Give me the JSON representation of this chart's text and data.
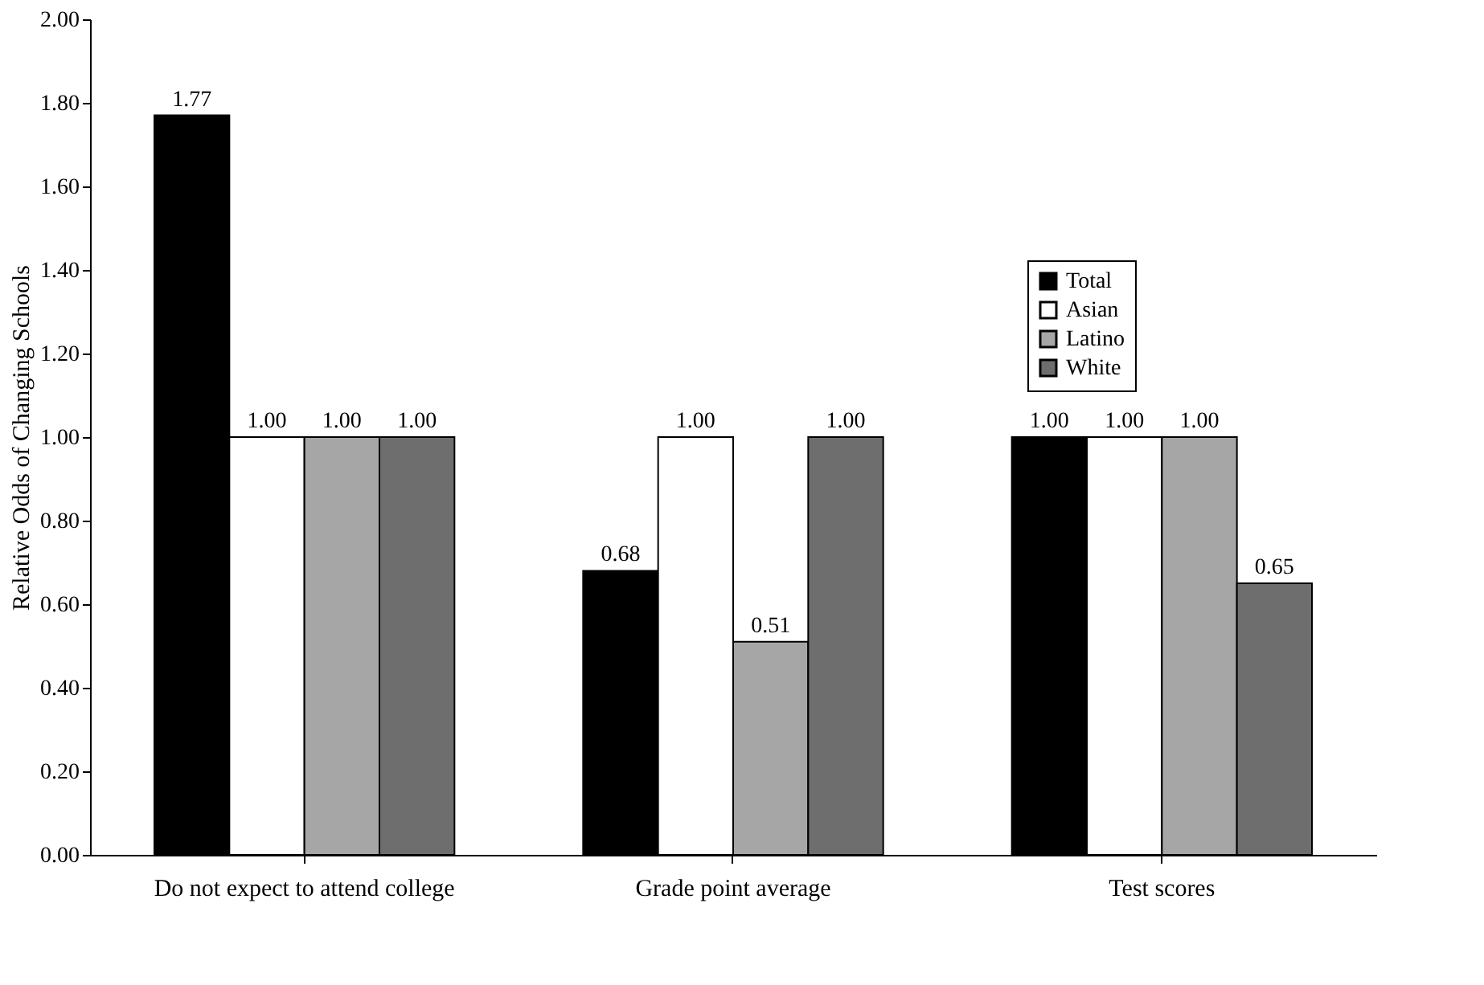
{
  "chart_data": {
    "type": "bar",
    "ylabel": "Relative Odds of Changing Schools",
    "categories": [
      "Do not expect to attend college",
      "Grade point average",
      "Test scores"
    ],
    "series": [
      {
        "name": "Total",
        "color": "#000000",
        "values": [
          1.77,
          0.68,
          1.0
        ],
        "value_labels": [
          "1.77",
          "0.68",
          "1.00"
        ]
      },
      {
        "name": "Asian",
        "color": "#ffffff",
        "values": [
          1.0,
          1.0,
          1.0
        ],
        "value_labels": [
          "1.00",
          "1.00",
          "1.00"
        ]
      },
      {
        "name": "Latino",
        "color": "#a6a6a6",
        "values": [
          1.0,
          0.51,
          1.0
        ],
        "value_labels": [
          "1.00",
          "0.51",
          "1.00"
        ]
      },
      {
        "name": "White",
        "color": "#6e6e6e",
        "values": [
          1.0,
          1.0,
          0.65
        ],
        "value_labels": [
          "1.00",
          "1.00",
          "0.65"
        ]
      }
    ],
    "ylim": [
      0,
      2
    ],
    "yticks": [
      {
        "value": 0,
        "label": "0.00"
      },
      {
        "value": 0.2,
        "label": "0.20"
      },
      {
        "value": 0.4,
        "label": "0.40"
      },
      {
        "value": 0.6,
        "label": "0.60"
      },
      {
        "value": 0.8,
        "label": "0.80"
      },
      {
        "value": 1,
        "label": "1.00"
      },
      {
        "value": 1.2,
        "label": "1.20"
      },
      {
        "value": 1.4,
        "label": "1.40"
      },
      {
        "value": 1.6,
        "label": "1.60"
      },
      {
        "value": 1.8,
        "label": "1.80"
      },
      {
        "value": 2,
        "label": "2.00"
      }
    ],
    "grid": false,
    "legend": "top right"
  }
}
